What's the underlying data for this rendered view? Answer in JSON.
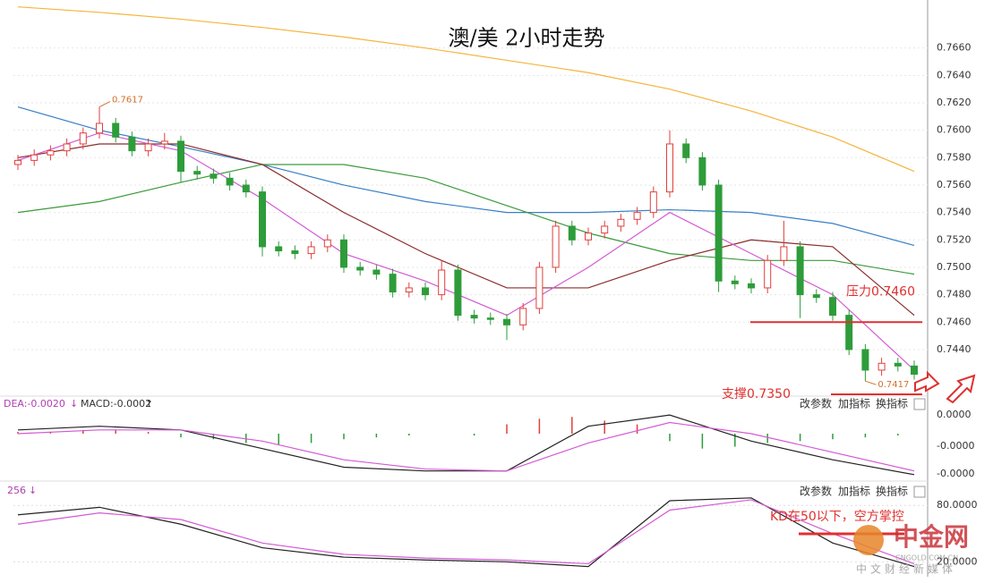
{
  "chart_data": [
    {
      "type": "candlestick",
      "title": "澳/美 2小时走势",
      "open": [
        0.7575,
        0.7578,
        0.7582,
        0.7585,
        0.759,
        0.7598,
        0.7605,
        0.7595,
        0.7585,
        0.759,
        0.7592,
        0.757,
        0.7568,
        0.7565,
        0.756,
        0.7555,
        0.7515,
        0.7512,
        0.751,
        0.7515,
        0.752,
        0.75,
        0.7498,
        0.7495,
        0.7482,
        0.7485,
        0.748,
        0.7498,
        0.7465,
        0.7463,
        0.7462,
        0.7458,
        0.747,
        0.75,
        0.753,
        0.752,
        0.7525,
        0.753,
        0.7535,
        0.754,
        0.7555,
        0.759,
        0.758,
        0.756,
        0.749,
        0.7488,
        0.7485,
        0.7505,
        0.7515,
        0.748,
        0.7478,
        0.7465,
        0.744,
        0.7425,
        0.743,
        0.7428
      ],
      "high": [
        0.7582,
        0.7586,
        0.7589,
        0.7594,
        0.7602,
        0.7617,
        0.7609,
        0.7599,
        0.7594,
        0.7598,
        0.7596,
        0.7574,
        0.7572,
        0.7569,
        0.7564,
        0.7559,
        0.7519,
        0.7516,
        0.7519,
        0.7524,
        0.7524,
        0.7504,
        0.7502,
        0.7499,
        0.7489,
        0.7489,
        0.7505,
        0.7502,
        0.7469,
        0.7467,
        0.7466,
        0.7474,
        0.7504,
        0.7534,
        0.7534,
        0.7529,
        0.7534,
        0.7539,
        0.7544,
        0.7559,
        0.76,
        0.7594,
        0.7584,
        0.7564,
        0.7494,
        0.7492,
        0.7509,
        0.7534,
        0.7519,
        0.7484,
        0.7482,
        0.7469,
        0.7444,
        0.7434,
        0.7434,
        0.7432
      ],
      "low": [
        0.7571,
        0.7574,
        0.7578,
        0.7581,
        0.7586,
        0.7594,
        0.7591,
        0.7581,
        0.7581,
        0.7586,
        0.7562,
        0.7564,
        0.7561,
        0.7556,
        0.7551,
        0.7508,
        0.7508,
        0.7506,
        0.7506,
        0.7511,
        0.7496,
        0.7494,
        0.7491,
        0.7478,
        0.7478,
        0.7476,
        0.7476,
        0.7461,
        0.7459,
        0.7458,
        0.7447,
        0.7454,
        0.7466,
        0.7496,
        0.7516,
        0.7516,
        0.7521,
        0.7526,
        0.7531,
        0.7536,
        0.7551,
        0.7576,
        0.7556,
        0.7482,
        0.7484,
        0.7481,
        0.7481,
        0.7501,
        0.7463,
        0.7474,
        0.7461,
        0.7436,
        0.7417,
        0.7421,
        0.7424,
        0.7418
      ],
      "close": [
        0.7578,
        0.7582,
        0.7585,
        0.759,
        0.7598,
        0.7605,
        0.7595,
        0.7585,
        0.759,
        0.7592,
        0.757,
        0.7568,
        0.7565,
        0.756,
        0.7555,
        0.7515,
        0.7512,
        0.751,
        0.7515,
        0.752,
        0.75,
        0.7498,
        0.7495,
        0.7482,
        0.7485,
        0.748,
        0.7498,
        0.7465,
        0.7463,
        0.7462,
        0.7458,
        0.747,
        0.75,
        0.753,
        0.752,
        0.7525,
        0.753,
        0.7535,
        0.754,
        0.7555,
        0.759,
        0.758,
        0.756,
        0.749,
        0.7488,
        0.7485,
        0.7505,
        0.7515,
        0.748,
        0.7478,
        0.7465,
        0.744,
        0.7425,
        0.743,
        0.7428,
        0.7422
      ],
      "up_color": "#e0403c",
      "down_color": "#2e9c3a",
      "ma_x": [
        0,
        5,
        10,
        15,
        20,
        25,
        30,
        35,
        40,
        45,
        50,
        55
      ],
      "ma_lines": [
        {
          "color": "#f5b43c",
          "values": [
            0.769,
            0.7686,
            0.7681,
            0.7675,
            0.7668,
            0.766,
            0.7651,
            0.7642,
            0.763,
            0.7614,
            0.7595,
            0.757
          ]
        },
        {
          "color": "#3a7fc4",
          "values": [
            0.7617,
            0.76,
            0.7588,
            0.7575,
            0.756,
            0.7548,
            0.754,
            0.754,
            0.7542,
            0.754,
            0.7532,
            0.7516
          ]
        },
        {
          "color": "#3c9a3c",
          "values": [
            0.754,
            0.7548,
            0.7562,
            0.7575,
            0.7575,
            0.7565,
            0.7545,
            0.7525,
            0.751,
            0.7505,
            0.7505,
            0.7495
          ]
        },
        {
          "color": "#8b2c2c",
          "values": [
            0.758,
            0.759,
            0.759,
            0.7575,
            0.754,
            0.751,
            0.7485,
            0.7485,
            0.7505,
            0.752,
            0.7515,
            0.7465
          ]
        },
        {
          "color": "#d45ad4",
          "values": [
            0.7578,
            0.7598,
            0.7585,
            0.755,
            0.751,
            0.749,
            0.7465,
            0.75,
            0.754,
            0.751,
            0.748,
            0.7425
          ]
        }
      ],
      "ylim": [
        0.7408,
        0.7695
      ],
      "yticks": [
        {
          "value": 0.744,
          "label": "0.7440"
        },
        {
          "value": 0.746,
          "label": "0.7460"
        },
        {
          "value": 0.748,
          "label": "0.7480"
        },
        {
          "value": 0.75,
          "label": "0.7500"
        },
        {
          "value": 0.752,
          "label": "0.7520"
        },
        {
          "value": 0.754,
          "label": "0.7540"
        },
        {
          "value": 0.756,
          "label": "0.7560"
        },
        {
          "value": 0.758,
          "label": "0.7580"
        },
        {
          "value": 0.76,
          "label": "0.7600"
        },
        {
          "value": 0.762,
          "label": "0.7620"
        },
        {
          "value": 0.764,
          "label": "0.7640"
        },
        {
          "value": 0.766,
          "label": "0.7660"
        }
      ],
      "extreme_labels": [
        {
          "value": 0.7617,
          "label": "0.7617"
        },
        {
          "value": 0.7417,
          "label": "0.7417"
        }
      ],
      "resistance": {
        "value": 0.746,
        "label": "压力0.7460",
        "color": "#e03030"
      },
      "support": {
        "value": 0.735,
        "label": "支撑0.7350",
        "color": "#e03030"
      }
    },
    {
      "type": "macd",
      "legend_texts": [
        "DEA:-0.0020",
        "MACD:-0.0002"
      ],
      "axis_labels": [
        "0.0000",
        "-0.0000",
        "-0.0000"
      ],
      "ylim": [
        -0.0024,
        0.0012
      ],
      "line_x": [
        0,
        5,
        10,
        15,
        20,
        25,
        30,
        35,
        40,
        45,
        50,
        55
      ],
      "lines": [
        {
          "color": "#222222",
          "values": [
            0.0002,
            0.0004,
            0.0002,
            -0.0008,
            -0.0018,
            -0.002,
            -0.002,
            0.0004,
            0.001,
            -0.0004,
            -0.0014,
            -0.0022
          ]
        },
        {
          "color": "#d45ad4",
          "values": [
            0.0,
            0.0002,
            0.0002,
            -0.0004,
            -0.0014,
            -0.0019,
            -0.002,
            -0.0005,
            0.0006,
            0.0,
            -0.001,
            -0.002
          ]
        }
      ],
      "hist_x": [
        0,
        2,
        4,
        6,
        8,
        10,
        12,
        14,
        16,
        18,
        20,
        22,
        24,
        26,
        28,
        30,
        32,
        34,
        36,
        38,
        40,
        42,
        44,
        46,
        48,
        50,
        52,
        54
      ],
      "hist": [
        0.0001,
        0.0001,
        0.0002,
        0.0002,
        0.0001,
        -0.0002,
        -0.0003,
        -0.0005,
        -0.0006,
        -0.0005,
        -0.0003,
        -0.0002,
        -0.0001,
        0,
        -0.0001,
        0.0005,
        0.0008,
        0.0009,
        0.0007,
        0.0005,
        -0.0004,
        -0.0008,
        -0.0007,
        -0.0005,
        -0.0004,
        -0.0003,
        -0.0002,
        -0.0001
      ],
      "up_color": "#e0403c",
      "down_color": "#2e9c3a"
    },
    {
      "type": "kd",
      "legend_texts": [
        "256"
      ],
      "ylim": [
        7,
        104
      ],
      "yticks": [
        {
          "value": 80,
          "label": "80.0000"
        },
        {
          "value": 20,
          "label": "20.0000"
        }
      ],
      "line_x": [
        0,
        5,
        10,
        15,
        20,
        25,
        30,
        35,
        40,
        45,
        50,
        55
      ],
      "lines": [
        {
          "color": "#222222",
          "values": [
            70,
            78,
            60,
            35,
            25,
            22,
            20,
            15,
            85,
            88,
            40,
            15
          ]
        },
        {
          "color": "#d45ad4",
          "values": [
            60,
            72,
            65,
            40,
            28,
            24,
            22,
            18,
            75,
            86,
            50,
            18
          ]
        }
      ],
      "annotation": "KD在50以下，空方掌控"
    }
  ],
  "toolbars": [
    [
      "改参数",
      "加指标",
      "换指标"
    ],
    [
      "改参数",
      "加指标",
      "换指标"
    ]
  ],
  "watermark": {
    "name": "中金网",
    "site": "CNGOLD.COM.CN",
    "slogan": "中文财经新媒体"
  }
}
